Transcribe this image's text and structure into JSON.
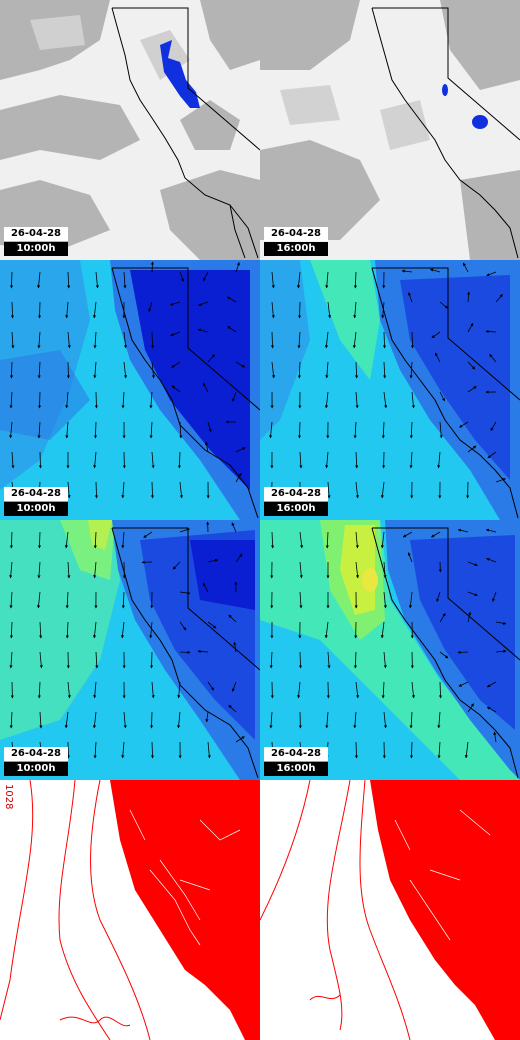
{
  "colors": {
    "cloud_gray": "#b0b0b0",
    "cloud_white": "#f4f4f4",
    "precip_blue": "#1030e0",
    "wind_dark": "#0a1ed2",
    "wind_mid": "#2a7ae8",
    "wind_light": "#22c8f0",
    "wind_green": "#44f0a0",
    "wind_yellow": "#c8f040",
    "contour_red": "#ff0000",
    "border": "#000000"
  },
  "panels": [
    {
      "row": 0,
      "col": 0,
      "type": "cloud-precip",
      "date": "26-04-28",
      "time": "10:00h"
    },
    {
      "row": 0,
      "col": 1,
      "type": "cloud-precip",
      "date": "26-04-28",
      "time": "16:00h"
    },
    {
      "row": 1,
      "col": 0,
      "type": "wind-10m",
      "date": "26-04-28",
      "time": "10:00h"
    },
    {
      "row": 1,
      "col": 1,
      "type": "wind-10m",
      "date": "26-04-28",
      "time": "16:00h"
    },
    {
      "row": 2,
      "col": 0,
      "type": "wind-gust",
      "date": "26-04-28",
      "time": "10:00h"
    },
    {
      "row": 2,
      "col": 1,
      "type": "wind-gust",
      "date": "26-04-28",
      "time": "16:00h"
    },
    {
      "row": 3,
      "col": 0,
      "type": "pressure-contours"
    },
    {
      "row": 3,
      "col": 1,
      "type": "pressure-contours"
    }
  ],
  "contour_value_label": "1028"
}
